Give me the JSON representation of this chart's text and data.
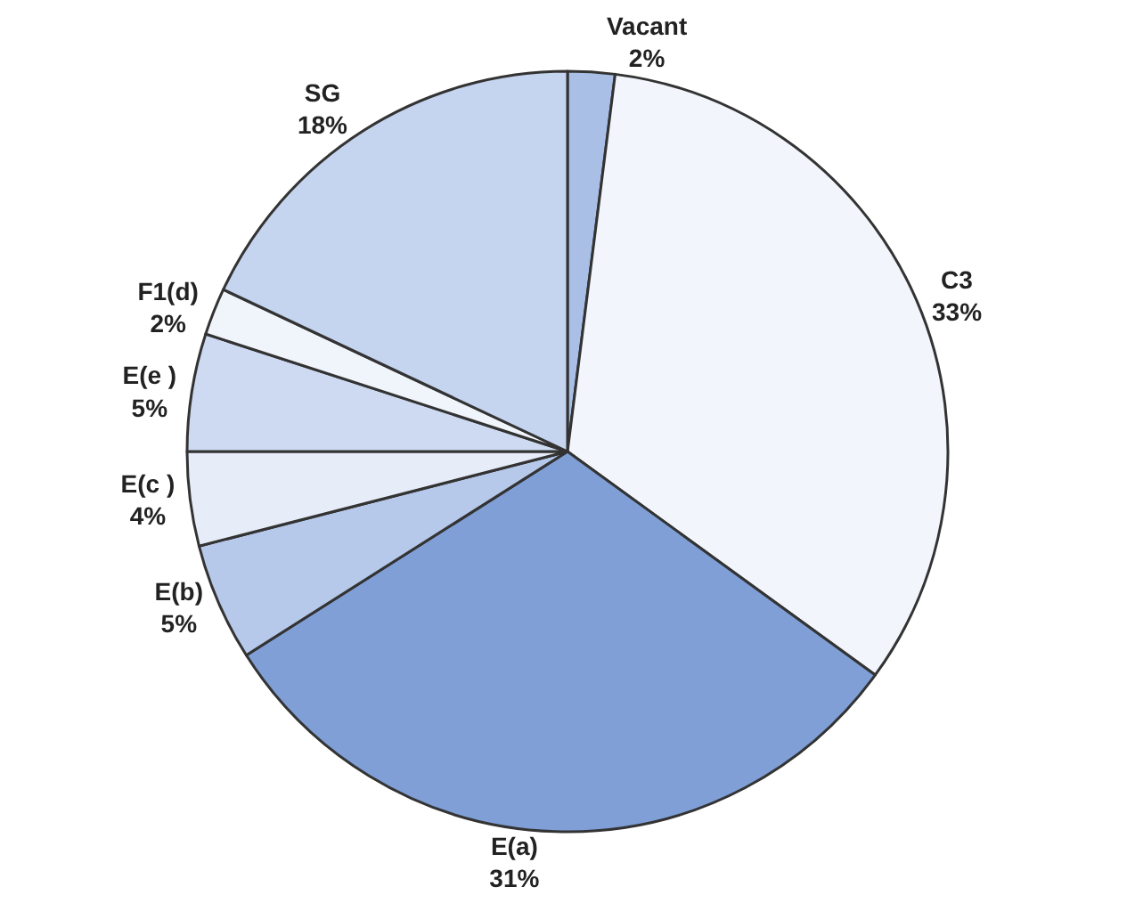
{
  "chart_data": {
    "type": "pie",
    "categories": [
      "Vacant",
      "C3",
      "E(a)",
      "E(b)",
      "E(c )",
      "E(e )",
      "F1(d)",
      "SG"
    ],
    "values": [
      2,
      33,
      31,
      5,
      4,
      5,
      2,
      18
    ],
    "value_labels": [
      "2%",
      "33%",
      "31%",
      "5%",
      "4%",
      "5%",
      "2%",
      "18%"
    ],
    "colors": [
      "#a9bfe6",
      "#f2f6fc",
      "#7f9fd6",
      "#b7c9ea",
      "#e6ecf8",
      "#cddaf1",
      "#f0f4fb",
      "#c5d4ef"
    ],
    "legend": false
  }
}
